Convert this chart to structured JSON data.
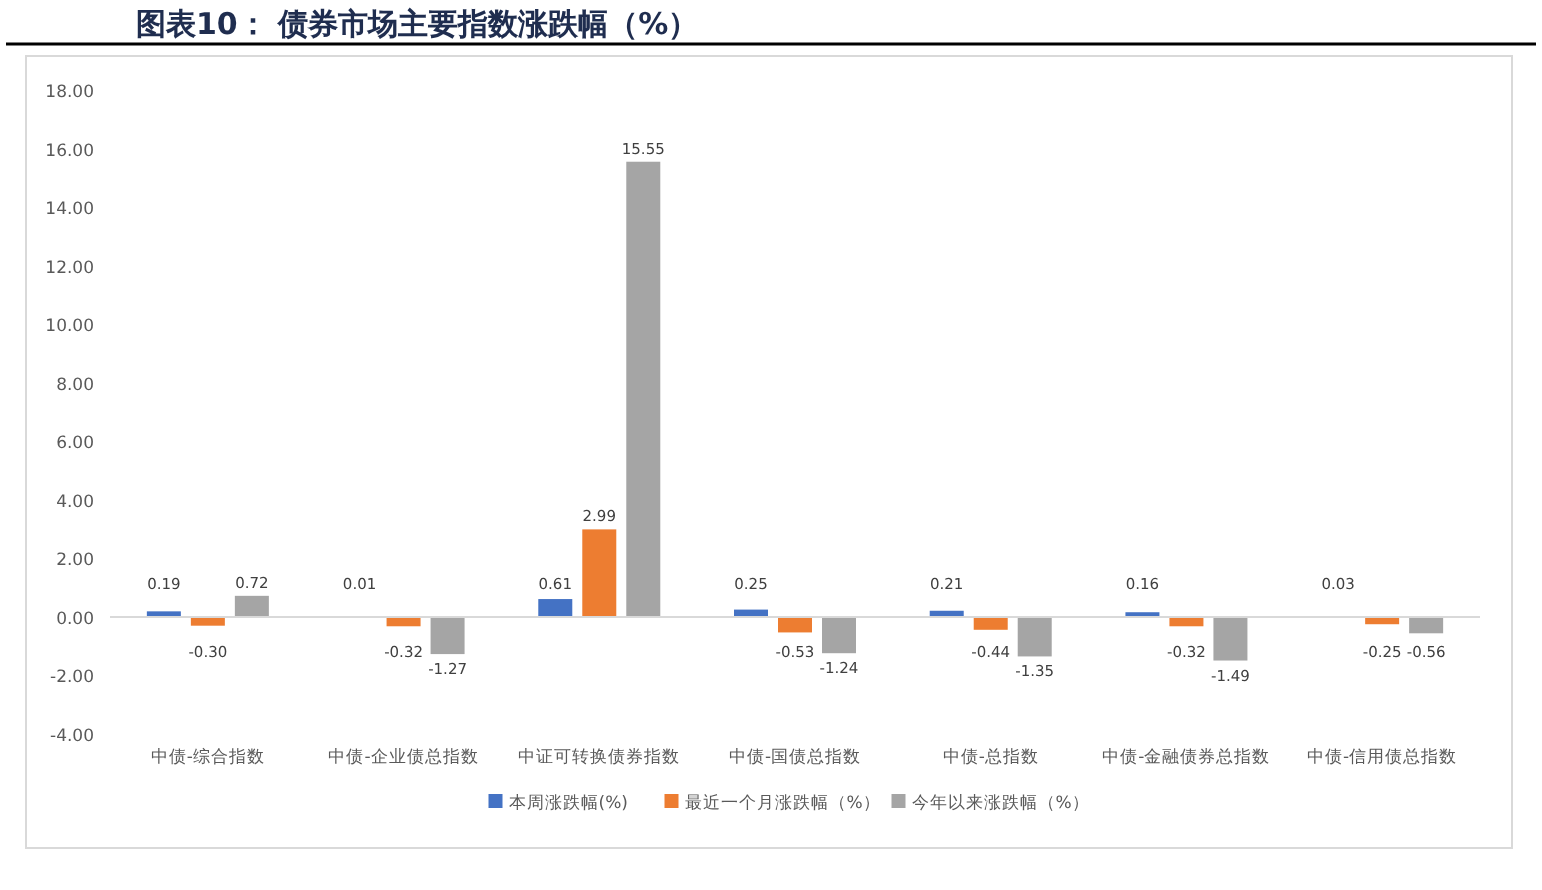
{
  "chart_data": {
    "type": "bar",
    "title": "图表10： 债券市场主要指数涨跌幅（%）",
    "categories": [
      "中债-综合指数",
      "中债-企业债总指数",
      "中证可转换债券指数",
      "中债-国债总指数",
      "中债-总指数",
      "中债-金融债券总指数",
      "中债-信用债总指数"
    ],
    "series": [
      {
        "name": "本周涨跌幅(%)",
        "color": "#4472c4",
        "values": [
          0.19,
          0.01,
          0.61,
          0.25,
          0.21,
          0.16,
          0.03
        ],
        "value_labels": [
          "0.19",
          "0.01",
          "0.61",
          "0.25",
          "0.21",
          "0.16",
          "0.03"
        ]
      },
      {
        "name": "最近一个月涨跌幅（%）",
        "color": "#ed7d31",
        "values": [
          -0.3,
          -0.32,
          2.99,
          -0.53,
          -0.44,
          -0.32,
          -0.25
        ],
        "value_labels": [
          "-0.30",
          "-0.32",
          "2.99",
          "-0.53",
          "-0.44",
          "-0.32",
          "-0.25"
        ]
      },
      {
        "name": "今年以来涨跌幅（%）",
        "color": "#a5a5a5",
        "values": [
          0.72,
          -1.27,
          15.55,
          -1.24,
          -1.35,
          -1.49,
          -0.56
        ],
        "value_labels": [
          "0.72",
          "-1.27",
          "15.55",
          "-1.24",
          "-1.35",
          "-1.49",
          "-0.56"
        ]
      }
    ],
    "ylim": [
      -4,
      18
    ],
    "yticks": [
      {
        "value": -4,
        "label": "-4.00"
      },
      {
        "value": -2,
        "label": "-2.00"
      },
      {
        "value": 0,
        "label": "0.00"
      },
      {
        "value": 2,
        "label": "2.00"
      },
      {
        "value": 4,
        "label": "4.00"
      },
      {
        "value": 6,
        "label": "6.00"
      },
      {
        "value": 8,
        "label": "8.00"
      },
      {
        "value": 10,
        "label": "10.00"
      },
      {
        "value": 12,
        "label": "12.00"
      },
      {
        "value": 14,
        "label": "14.00"
      },
      {
        "value": 16,
        "label": "16.00"
      },
      {
        "value": 18,
        "label": "18.00"
      }
    ],
    "legend": "bottom"
  }
}
